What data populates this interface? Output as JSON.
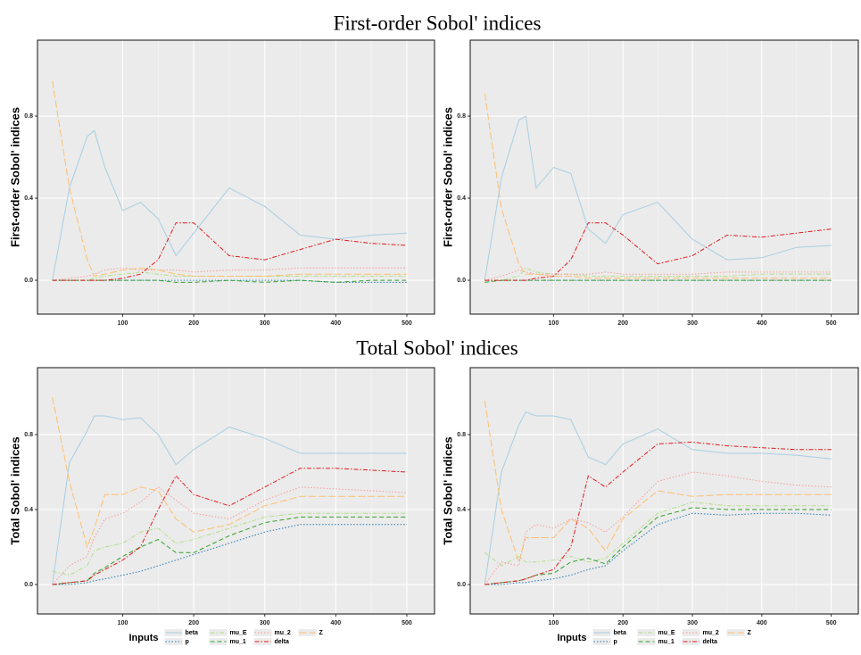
{
  "section_titles": [
    "First-order Sobol' indices",
    "Total Sobol' indices"
  ],
  "chart_data": [
    {
      "type": "line",
      "ylabel": "First-order Sobol' indices",
      "x": [
        1,
        25,
        50,
        60,
        75,
        100,
        125,
        150,
        175,
        200,
        250,
        300,
        350,
        400,
        450,
        500
      ],
      "xlim": [
        -20,
        539
      ],
      "xticks": [
        100,
        200,
        300,
        400,
        500
      ],
      "ylim": [
        -0.165,
        1.17
      ],
      "yticks": [
        {
          "value": 0,
          "label": "0.0"
        },
        {
          "value": 0.4,
          "label": "0.4"
        },
        {
          "value": 0.8,
          "label": "0.8"
        }
      ],
      "grid": true,
      "series": [
        {
          "name": "beta",
          "color": "#a6cee3",
          "linestyle": "solid",
          "values": [
            0,
            0.45,
            0.7,
            0.73,
            0.55,
            0.34,
            0.38,
            0.3,
            0.12,
            0.23,
            0.45,
            0.36,
            0.22,
            0.2,
            0.22,
            0.23
          ]
        },
        {
          "name": "p",
          "color": "#1f78b4",
          "linestyle": "dotted",
          "values": [
            0,
            0,
            0,
            0,
            0,
            0,
            0,
            0,
            0,
            0,
            0,
            0,
            0,
            -0.01,
            -0.01,
            -0.01
          ]
        },
        {
          "name": "mu_E",
          "color": "#b2df8a",
          "linestyle": "dotdash",
          "values": [
            0,
            0,
            0,
            0.01,
            0.02,
            0.03,
            0.04,
            0.03,
            0.02,
            0.02,
            0.02,
            0.02,
            0.02,
            0.02,
            0.02,
            0.02
          ]
        },
        {
          "name": "mu_1",
          "color": "#33a02c",
          "linestyle": "dashed",
          "values": [
            0,
            0,
            0,
            0,
            0,
            0,
            0,
            0,
            -0.01,
            -0.01,
            0,
            -0.01,
            0,
            -0.01,
            0,
            0
          ]
        },
        {
          "name": "mu_2",
          "color": "#fb9a99",
          "linestyle": "dotted",
          "values": [
            0,
            0.01,
            0.02,
            0.03,
            0.05,
            0.06,
            0.05,
            0.05,
            0.05,
            0.04,
            0.05,
            0.05,
            0.06,
            0.06,
            0.06,
            0.06
          ]
        },
        {
          "name": "delta",
          "color": "#e31a1c",
          "linestyle": "dotdash",
          "values": [
            0,
            0,
            0,
            0,
            0,
            0.01,
            0.03,
            0.1,
            0.28,
            0.28,
            0.12,
            0.1,
            0.15,
            0.2,
            0.18,
            0.17
          ]
        },
        {
          "name": "Z",
          "color": "#fdbf6f",
          "linestyle": "longdash",
          "values": [
            0.97,
            0.45,
            0.1,
            0.02,
            0.03,
            0.05,
            0.06,
            0.05,
            0.03,
            0.02,
            0.02,
            0.02,
            0.03,
            0.03,
            0.03,
            0.03
          ]
        }
      ]
    },
    {
      "type": "line",
      "ylabel": "First-order Sobol' indices",
      "x": [
        1,
        25,
        50,
        60,
        75,
        100,
        125,
        150,
        175,
        200,
        250,
        300,
        350,
        400,
        450,
        500
      ],
      "xlim": [
        -20,
        539
      ],
      "xticks": [
        100,
        200,
        300,
        400,
        500
      ],
      "ylim": [
        -0.165,
        1.17
      ],
      "yticks": [
        {
          "value": 0,
          "label": "0.0"
        },
        {
          "value": 0.4,
          "label": "0.4"
        },
        {
          "value": 0.8,
          "label": "0.8"
        }
      ],
      "grid": true,
      "series": [
        {
          "name": "beta",
          "color": "#a6cee3",
          "linestyle": "solid",
          "values": [
            0,
            0.5,
            0.78,
            0.8,
            0.45,
            0.55,
            0.52,
            0.25,
            0.18,
            0.32,
            0.38,
            0.2,
            0.1,
            0.11,
            0.16,
            0.17
          ]
        },
        {
          "name": "p",
          "color": "#1f78b4",
          "linestyle": "dotted",
          "values": [
            0,
            0,
            0,
            0,
            0,
            0,
            0,
            0,
            0,
            0,
            0,
            0,
            0,
            0,
            0,
            0
          ]
        },
        {
          "name": "mu_E",
          "color": "#b2df8a",
          "linestyle": "dotdash",
          "values": [
            0,
            0,
            0.02,
            0.06,
            0.04,
            0.03,
            0.03,
            0.02,
            0.02,
            0.02,
            0.02,
            0.02,
            0.02,
            0.03,
            0.03,
            0.03
          ]
        },
        {
          "name": "mu_1",
          "color": "#33a02c",
          "linestyle": "dashed",
          "values": [
            -0.01,
            0,
            0,
            0,
            0,
            0,
            0,
            0,
            0,
            0,
            0,
            0,
            0,
            0,
            0,
            0
          ]
        },
        {
          "name": "mu_2",
          "color": "#fb9a99",
          "linestyle": "dotted",
          "values": [
            0,
            0.02,
            0.05,
            0.04,
            0.03,
            0.03,
            0.03,
            0.03,
            0.04,
            0.03,
            0.03,
            0.03,
            0.04,
            0.04,
            0.04,
            0.04
          ]
        },
        {
          "name": "delta",
          "color": "#e31a1c",
          "linestyle": "dotdash",
          "values": [
            0,
            0,
            0,
            0,
            0.01,
            0.02,
            0.1,
            0.28,
            0.28,
            0.22,
            0.08,
            0.12,
            0.22,
            0.21,
            0.23,
            0.25
          ]
        },
        {
          "name": "Z",
          "color": "#fdbf6f",
          "linestyle": "longdash",
          "values": [
            0.91,
            0.35,
            0.08,
            0.03,
            0.03,
            0.02,
            0.02,
            0.01,
            0.01,
            0.01,
            0.01,
            0.01,
            0.01,
            0.01,
            0.01,
            0.01
          ]
        }
      ]
    },
    {
      "type": "line",
      "ylabel": "Total Sobol' indices",
      "legend_title": "Inputs",
      "x": [
        1,
        25,
        50,
        60,
        75,
        100,
        125,
        150,
        175,
        200,
        250,
        300,
        350,
        400,
        450,
        500
      ],
      "xlim": [
        -20,
        539
      ],
      "xticks": [
        100,
        200,
        300,
        400,
        500
      ],
      "ylim": [
        -0.157,
        1.157
      ],
      "yticks": [
        {
          "value": 0,
          "label": "0.0"
        },
        {
          "value": 0.4,
          "label": "0.4"
        },
        {
          "value": 0.8,
          "label": "0.8"
        }
      ],
      "grid": true,
      "series": [
        {
          "name": "beta",
          "color": "#a6cee3",
          "linestyle": "solid",
          "values": [
            0,
            0.65,
            0.82,
            0.9,
            0.9,
            0.88,
            0.89,
            0.8,
            0.64,
            0.72,
            0.84,
            0.78,
            0.7,
            0.7,
            0.7,
            0.7
          ]
        },
        {
          "name": "p",
          "color": "#1f78b4",
          "linestyle": "dotted",
          "values": [
            0,
            0,
            0.01,
            0.02,
            0.03,
            0.05,
            0.07,
            0.1,
            0.13,
            0.16,
            0.22,
            0.28,
            0.32,
            0.32,
            0.32,
            0.32
          ]
        },
        {
          "name": "mu_E",
          "color": "#b2df8a",
          "linestyle": "dotdash",
          "values": [
            0.07,
            0.05,
            0.1,
            0.18,
            0.2,
            0.22,
            0.28,
            0.3,
            0.22,
            0.24,
            0.3,
            0.36,
            0.38,
            0.38,
            0.38,
            0.38
          ]
        },
        {
          "name": "mu_1",
          "color": "#33a02c",
          "linestyle": "dashed",
          "values": [
            0,
            0.01,
            0.02,
            0.06,
            0.09,
            0.15,
            0.2,
            0.24,
            0.17,
            0.17,
            0.26,
            0.33,
            0.36,
            0.36,
            0.36,
            0.36
          ]
        },
        {
          "name": "mu_2",
          "color": "#fb9a99",
          "linestyle": "dotted",
          "values": [
            0,
            0.1,
            0.15,
            0.25,
            0.35,
            0.38,
            0.44,
            0.52,
            0.45,
            0.38,
            0.35,
            0.45,
            0.52,
            0.51,
            0.5,
            0.49
          ]
        },
        {
          "name": "delta",
          "color": "#e31a1c",
          "linestyle": "dotdash",
          "values": [
            0,
            0.01,
            0.02,
            0.05,
            0.08,
            0.13,
            0.2,
            0.4,
            0.58,
            0.48,
            0.42,
            0.52,
            0.62,
            0.62,
            0.61,
            0.6
          ]
        },
        {
          "name": "Z",
          "color": "#fdbf6f",
          "linestyle": "longdash",
          "values": [
            1,
            0.55,
            0.2,
            0.3,
            0.48,
            0.48,
            0.52,
            0.5,
            0.35,
            0.28,
            0.32,
            0.42,
            0.47,
            0.47,
            0.47,
            0.47
          ]
        }
      ]
    },
    {
      "type": "line",
      "ylabel": "Total Sobol' indices",
      "legend_title": "Inputs",
      "x": [
        1,
        25,
        50,
        60,
        75,
        100,
        125,
        150,
        175,
        200,
        250,
        300,
        350,
        400,
        450,
        500
      ],
      "xlim": [
        -20,
        539
      ],
      "xticks": [
        100,
        200,
        300,
        400,
        500
      ],
      "ylim": [
        -0.157,
        1.157
      ],
      "yticks": [
        {
          "value": 0,
          "label": "0.0"
        },
        {
          "value": 0.4,
          "label": "0.4"
        },
        {
          "value": 0.8,
          "label": "0.8"
        }
      ],
      "grid": true,
      "series": [
        {
          "name": "beta",
          "color": "#a6cee3",
          "linestyle": "solid",
          "values": [
            0,
            0.6,
            0.85,
            0.92,
            0.9,
            0.9,
            0.88,
            0.68,
            0.64,
            0.75,
            0.83,
            0.72,
            0.7,
            0.7,
            0.69,
            0.67
          ]
        },
        {
          "name": "p",
          "color": "#1f78b4",
          "linestyle": "dotted",
          "values": [
            0,
            0,
            0.01,
            0.01,
            0.02,
            0.03,
            0.05,
            0.08,
            0.1,
            0.18,
            0.32,
            0.38,
            0.37,
            0.38,
            0.38,
            0.37
          ]
        },
        {
          "name": "mu_E",
          "color": "#b2df8a",
          "linestyle": "dotdash",
          "values": [
            0.17,
            0.1,
            0.15,
            0.12,
            0.12,
            0.13,
            0.15,
            0.12,
            0.14,
            0.22,
            0.38,
            0.44,
            0.42,
            0.42,
            0.42,
            0.42
          ]
        },
        {
          "name": "mu_1",
          "color": "#33a02c",
          "linestyle": "dashed",
          "values": [
            0,
            0.01,
            0.02,
            0.03,
            0.05,
            0.06,
            0.12,
            0.14,
            0.11,
            0.2,
            0.36,
            0.41,
            0.4,
            0.4,
            0.4,
            0.4
          ]
        },
        {
          "name": "mu_2",
          "color": "#fb9a99",
          "linestyle": "dotted",
          "values": [
            0,
            0.12,
            0.1,
            0.28,
            0.32,
            0.3,
            0.35,
            0.33,
            0.28,
            0.36,
            0.55,
            0.6,
            0.58,
            0.55,
            0.53,
            0.52
          ]
        },
        {
          "name": "delta",
          "color": "#e31a1c",
          "linestyle": "dotdash",
          "values": [
            0,
            0.01,
            0.02,
            0.03,
            0.05,
            0.08,
            0.2,
            0.58,
            0.52,
            0.6,
            0.75,
            0.76,
            0.74,
            0.73,
            0.72,
            0.72
          ]
        },
        {
          "name": "Z",
          "color": "#fdbf6f",
          "linestyle": "longdash",
          "values": [
            0.98,
            0.4,
            0.12,
            0.25,
            0.25,
            0.25,
            0.35,
            0.3,
            0.18,
            0.35,
            0.5,
            0.47,
            0.48,
            0.48,
            0.48,
            0.48
          ]
        }
      ]
    }
  ]
}
